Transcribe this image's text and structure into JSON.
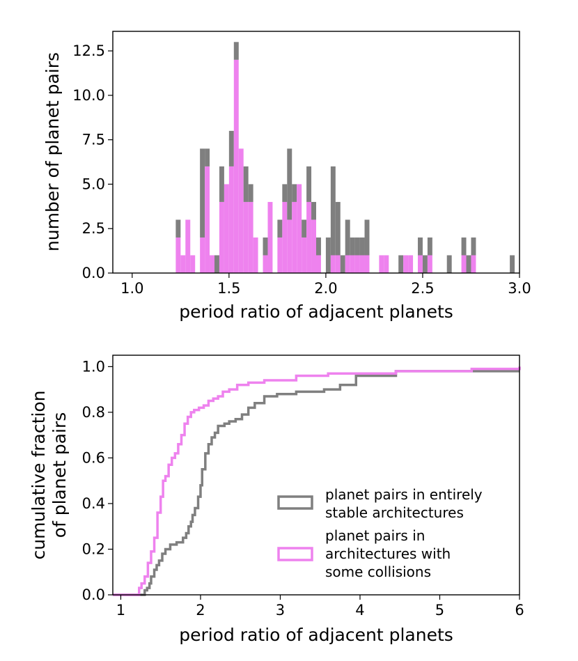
{
  "chart_data": [
    {
      "type": "bar",
      "subtype": "stacked histogram",
      "xlabel": "period ratio of adjacent planets",
      "ylabel": "number of planet pairs",
      "xlim": [
        0.9,
        3.0
      ],
      "ylim": [
        0,
        13.6
      ],
      "xticks": [
        1.0,
        1.5,
        2.0,
        2.5,
        3.0
      ],
      "xtick_labels": [
        "1.0",
        "1.5",
        "2.0",
        "2.5",
        "3.0"
      ],
      "yticks": [
        0.0,
        2.5,
        5.0,
        7.5,
        10.0,
        12.5
      ],
      "ytick_labels": [
        "0.0",
        "2.5",
        "5.0",
        "7.5",
        "10.0",
        "12.5"
      ],
      "bin_width": 0.025,
      "bin_starts": [
        1.225,
        1.25,
        1.275,
        1.3,
        1.325,
        1.35,
        1.375,
        1.4,
        1.425,
        1.45,
        1.475,
        1.5,
        1.525,
        1.55,
        1.575,
        1.6,
        1.625,
        1.65,
        1.675,
        1.7,
        1.725,
        1.75,
        1.775,
        1.8,
        1.825,
        1.85,
        1.875,
        1.9,
        1.925,
        1.95,
        1.975,
        2.0,
        2.025,
        2.05,
        2.075,
        2.1,
        2.125,
        2.15,
        2.175,
        2.2,
        2.225,
        2.25,
        2.275,
        2.3,
        2.325,
        2.35,
        2.375,
        2.4,
        2.425,
        2.45,
        2.475,
        2.5,
        2.525,
        2.55,
        2.575,
        2.6,
        2.625,
        2.65,
        2.675,
        2.7,
        2.725,
        2.75,
        2.775,
        2.8,
        2.825,
        2.85,
        2.875,
        2.9,
        2.925,
        2.95
      ],
      "series": [
        {
          "name": "planet pairs in architectures with some collisions",
          "color": "#ee82ee",
          "values": [
            2,
            1,
            3,
            1,
            0,
            2,
            6,
            1,
            0,
            4,
            5,
            6,
            12,
            7,
            4,
            4,
            2,
            0,
            1,
            4,
            0,
            2,
            4,
            3,
            4,
            5,
            2,
            4,
            3,
            1,
            0,
            0,
            1,
            1,
            0,
            1,
            1,
            1,
            1,
            1,
            0,
            0,
            1,
            1,
            0,
            0,
            0,
            1,
            1,
            0,
            1,
            0,
            1,
            0,
            0,
            0,
            0,
            0,
            0,
            1,
            0,
            1,
            0,
            0,
            0,
            0,
            0,
            0,
            0,
            0
          ]
        },
        {
          "name": "planet pairs in entirely stable architectures",
          "color": "#7f7f7f",
          "values": [
            1,
            0,
            0,
            0,
            0,
            5,
            1,
            0,
            1,
            2,
            0,
            2,
            1,
            0,
            2,
            1,
            0,
            0,
            1,
            0,
            0,
            1,
            1,
            4,
            1,
            0,
            1,
            2,
            1,
            1,
            0,
            2,
            5,
            3,
            1,
            2,
            1,
            1,
            1,
            2,
            0,
            0,
            0,
            0,
            0,
            0,
            1,
            0,
            0,
            0,
            1,
            1,
            1,
            0,
            0,
            0,
            1,
            0,
            0,
            1,
            1,
            1,
            0,
            0,
            0,
            0,
            0,
            0,
            0,
            1
          ]
        }
      ]
    },
    {
      "type": "line",
      "subtype": "cumulative step",
      "xlabel": "period ratio of adjacent planets",
      "ylabel": "cumulative fraction of planet pairs",
      "ylabel_lines": [
        "cumulative fraction",
        "of planet pairs"
      ],
      "xlim": [
        0.9,
        6.0
      ],
      "ylim": [
        0.0,
        1.05
      ],
      "xticks": [
        1,
        2,
        3,
        4,
        5,
        6
      ],
      "xtick_labels": [
        "1",
        "2",
        "3",
        "4",
        "5",
        "6"
      ],
      "yticks": [
        0.0,
        0.2,
        0.4,
        0.6,
        0.8,
        1.0
      ],
      "ytick_labels": [
        "0.0",
        "0.2",
        "0.4",
        "0.6",
        "0.8",
        "1.0"
      ],
      "legend_position": "lower right",
      "series": [
        {
          "name": "planet pairs in entirely stable architectures",
          "legend_lines": [
            "planet pairs in entirely",
            "stable architectures"
          ],
          "color": "#7f7f7f",
          "x": [
            0.9,
            1.3,
            1.33,
            1.36,
            1.38,
            1.42,
            1.45,
            1.48,
            1.52,
            1.56,
            1.62,
            1.7,
            1.78,
            1.82,
            1.85,
            1.88,
            1.9,
            1.93,
            1.97,
            2.0,
            2.02,
            2.06,
            2.1,
            2.14,
            2.18,
            2.22,
            2.3,
            2.36,
            2.44,
            2.52,
            2.6,
            2.68,
            2.8,
            2.96,
            3.2,
            3.55,
            3.75,
            3.95,
            4.45,
            6.0
          ],
          "y": [
            0.0,
            0.02,
            0.03,
            0.05,
            0.08,
            0.11,
            0.13,
            0.15,
            0.18,
            0.2,
            0.22,
            0.23,
            0.25,
            0.27,
            0.3,
            0.32,
            0.35,
            0.38,
            0.43,
            0.48,
            0.55,
            0.62,
            0.66,
            0.69,
            0.71,
            0.74,
            0.75,
            0.76,
            0.77,
            0.79,
            0.82,
            0.84,
            0.87,
            0.88,
            0.89,
            0.9,
            0.92,
            0.96,
            0.98,
            0.98
          ]
        },
        {
          "name": "planet pairs in architectures with some collisions",
          "legend_lines": [
            "planet pairs in",
            "architectures with",
            "some collisions"
          ],
          "color": "#ee82ee",
          "x": [
            0.9,
            1.23,
            1.26,
            1.3,
            1.34,
            1.38,
            1.42,
            1.46,
            1.5,
            1.53,
            1.56,
            1.6,
            1.64,
            1.68,
            1.72,
            1.76,
            1.8,
            1.84,
            1.88,
            1.92,
            1.98,
            2.04,
            2.1,
            2.16,
            2.22,
            2.28,
            2.36,
            2.46,
            2.6,
            2.8,
            3.2,
            3.6,
            4.45,
            5.4,
            6.0
          ],
          "y": [
            0.0,
            0.03,
            0.05,
            0.08,
            0.14,
            0.19,
            0.25,
            0.36,
            0.43,
            0.5,
            0.52,
            0.57,
            0.6,
            0.62,
            0.66,
            0.7,
            0.75,
            0.78,
            0.8,
            0.81,
            0.82,
            0.83,
            0.85,
            0.86,
            0.87,
            0.89,
            0.9,
            0.92,
            0.93,
            0.94,
            0.96,
            0.97,
            0.98,
            0.99,
            1.0
          ]
        }
      ]
    }
  ]
}
